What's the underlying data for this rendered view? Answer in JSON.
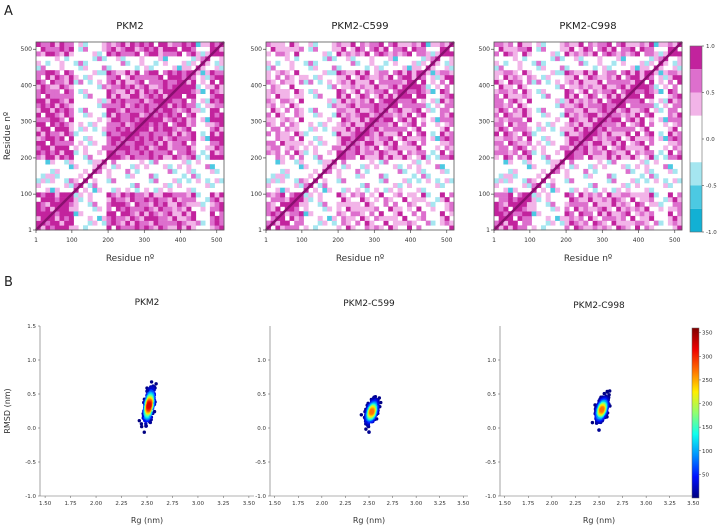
{
  "panel_labels": {
    "a": "A",
    "b": "B"
  },
  "chart_data": [
    {
      "type": "heatmap",
      "panel": "A",
      "subplots": [
        {
          "title": "PKM2",
          "variant": "pkm2"
        },
        {
          "title": "PKM2-C599",
          "variant": "c599"
        },
        {
          "title": "PKM2-C998",
          "variant": "c998"
        }
      ],
      "xlabel": "Residue nº",
      "ylabel": "Residue nº",
      "xticks": [
        1,
        100,
        200,
        300,
        400,
        500
      ],
      "yticks": [
        1,
        100,
        200,
        300,
        400,
        500
      ],
      "range": [
        1,
        520
      ],
      "colorbar": {
        "ticks": [
          1.0,
          0.5,
          0.0,
          -0.5,
          -1.0
        ],
        "tick_labels": [
          "1.0",
          "0.5",
          "0.0",
          "-0.5",
          "-1.0"
        ],
        "levels": [
          {
            "from": 0.75,
            "to": 1.0,
            "color": "#c2239d"
          },
          {
            "from": 0.5,
            "to": 0.75,
            "color": "#dd6fcd"
          },
          {
            "from": 0.25,
            "to": 0.5,
            "color": "#f2b4e8"
          },
          {
            "from": -0.25,
            "to": 0.25,
            "color": "#ffffff"
          },
          {
            "from": -0.5,
            "to": -0.25,
            "color": "#a5e6f0"
          },
          {
            "from": -0.75,
            "to": -0.5,
            "color": "#4cc9e2"
          },
          {
            "from": -1.0,
            "to": -0.75,
            "color": "#12b0d4"
          }
        ]
      }
    },
    {
      "type": "scatter",
      "panel": "B",
      "subplots": [
        {
          "title": "PKM2",
          "center": [
            2.52,
            0.33
          ],
          "spread": [
            0.025,
            0.1
          ],
          "peak": 0.9
        },
        {
          "title": "PKM2-C599",
          "center": [
            2.53,
            0.24
          ],
          "spread": [
            0.03,
            0.07
          ],
          "peak": 0.75
        },
        {
          "title": "PKM2-C998",
          "center": [
            2.53,
            0.27
          ],
          "spread": [
            0.03,
            0.07
          ],
          "peak": 0.75
        }
      ],
      "xlabel": "Rg (nm)",
      "ylabel": "RMSD (nm)",
      "xlim": [
        1.45,
        3.55
      ],
      "ylim": [
        -1.0,
        1.5
      ],
      "xticks": [
        1.5,
        1.75,
        2.0,
        2.25,
        2.5,
        2.75,
        3.0,
        3.25,
        3.5
      ],
      "xtick_labels": [
        "1.50",
        "1.75",
        "2.00",
        "2.25",
        "2.50",
        "2.75",
        "3.00",
        "3.25",
        "3.50"
      ],
      "yticks": [
        -1.0,
        -0.5,
        0.0,
        0.5,
        1.0,
        1.5
      ],
      "ytick_labels": [
        "-1.0",
        "-0.5",
        "0.0",
        "0.5",
        "1.0",
        "1.5"
      ],
      "colorbar": {
        "min": 0,
        "max": 360,
        "ticks": [
          50,
          100,
          150,
          200,
          250,
          300,
          350
        ],
        "tick_labels": [
          "50",
          "100",
          "150",
          "200",
          "250",
          "300",
          "350"
        ],
        "colormap": [
          "#00007f",
          "#0010ff",
          "#0090ff",
          "#0fffee",
          "#90ff70",
          "#ffee00",
          "#ff7000",
          "#ee0000",
          "#7f0000"
        ]
      }
    }
  ]
}
